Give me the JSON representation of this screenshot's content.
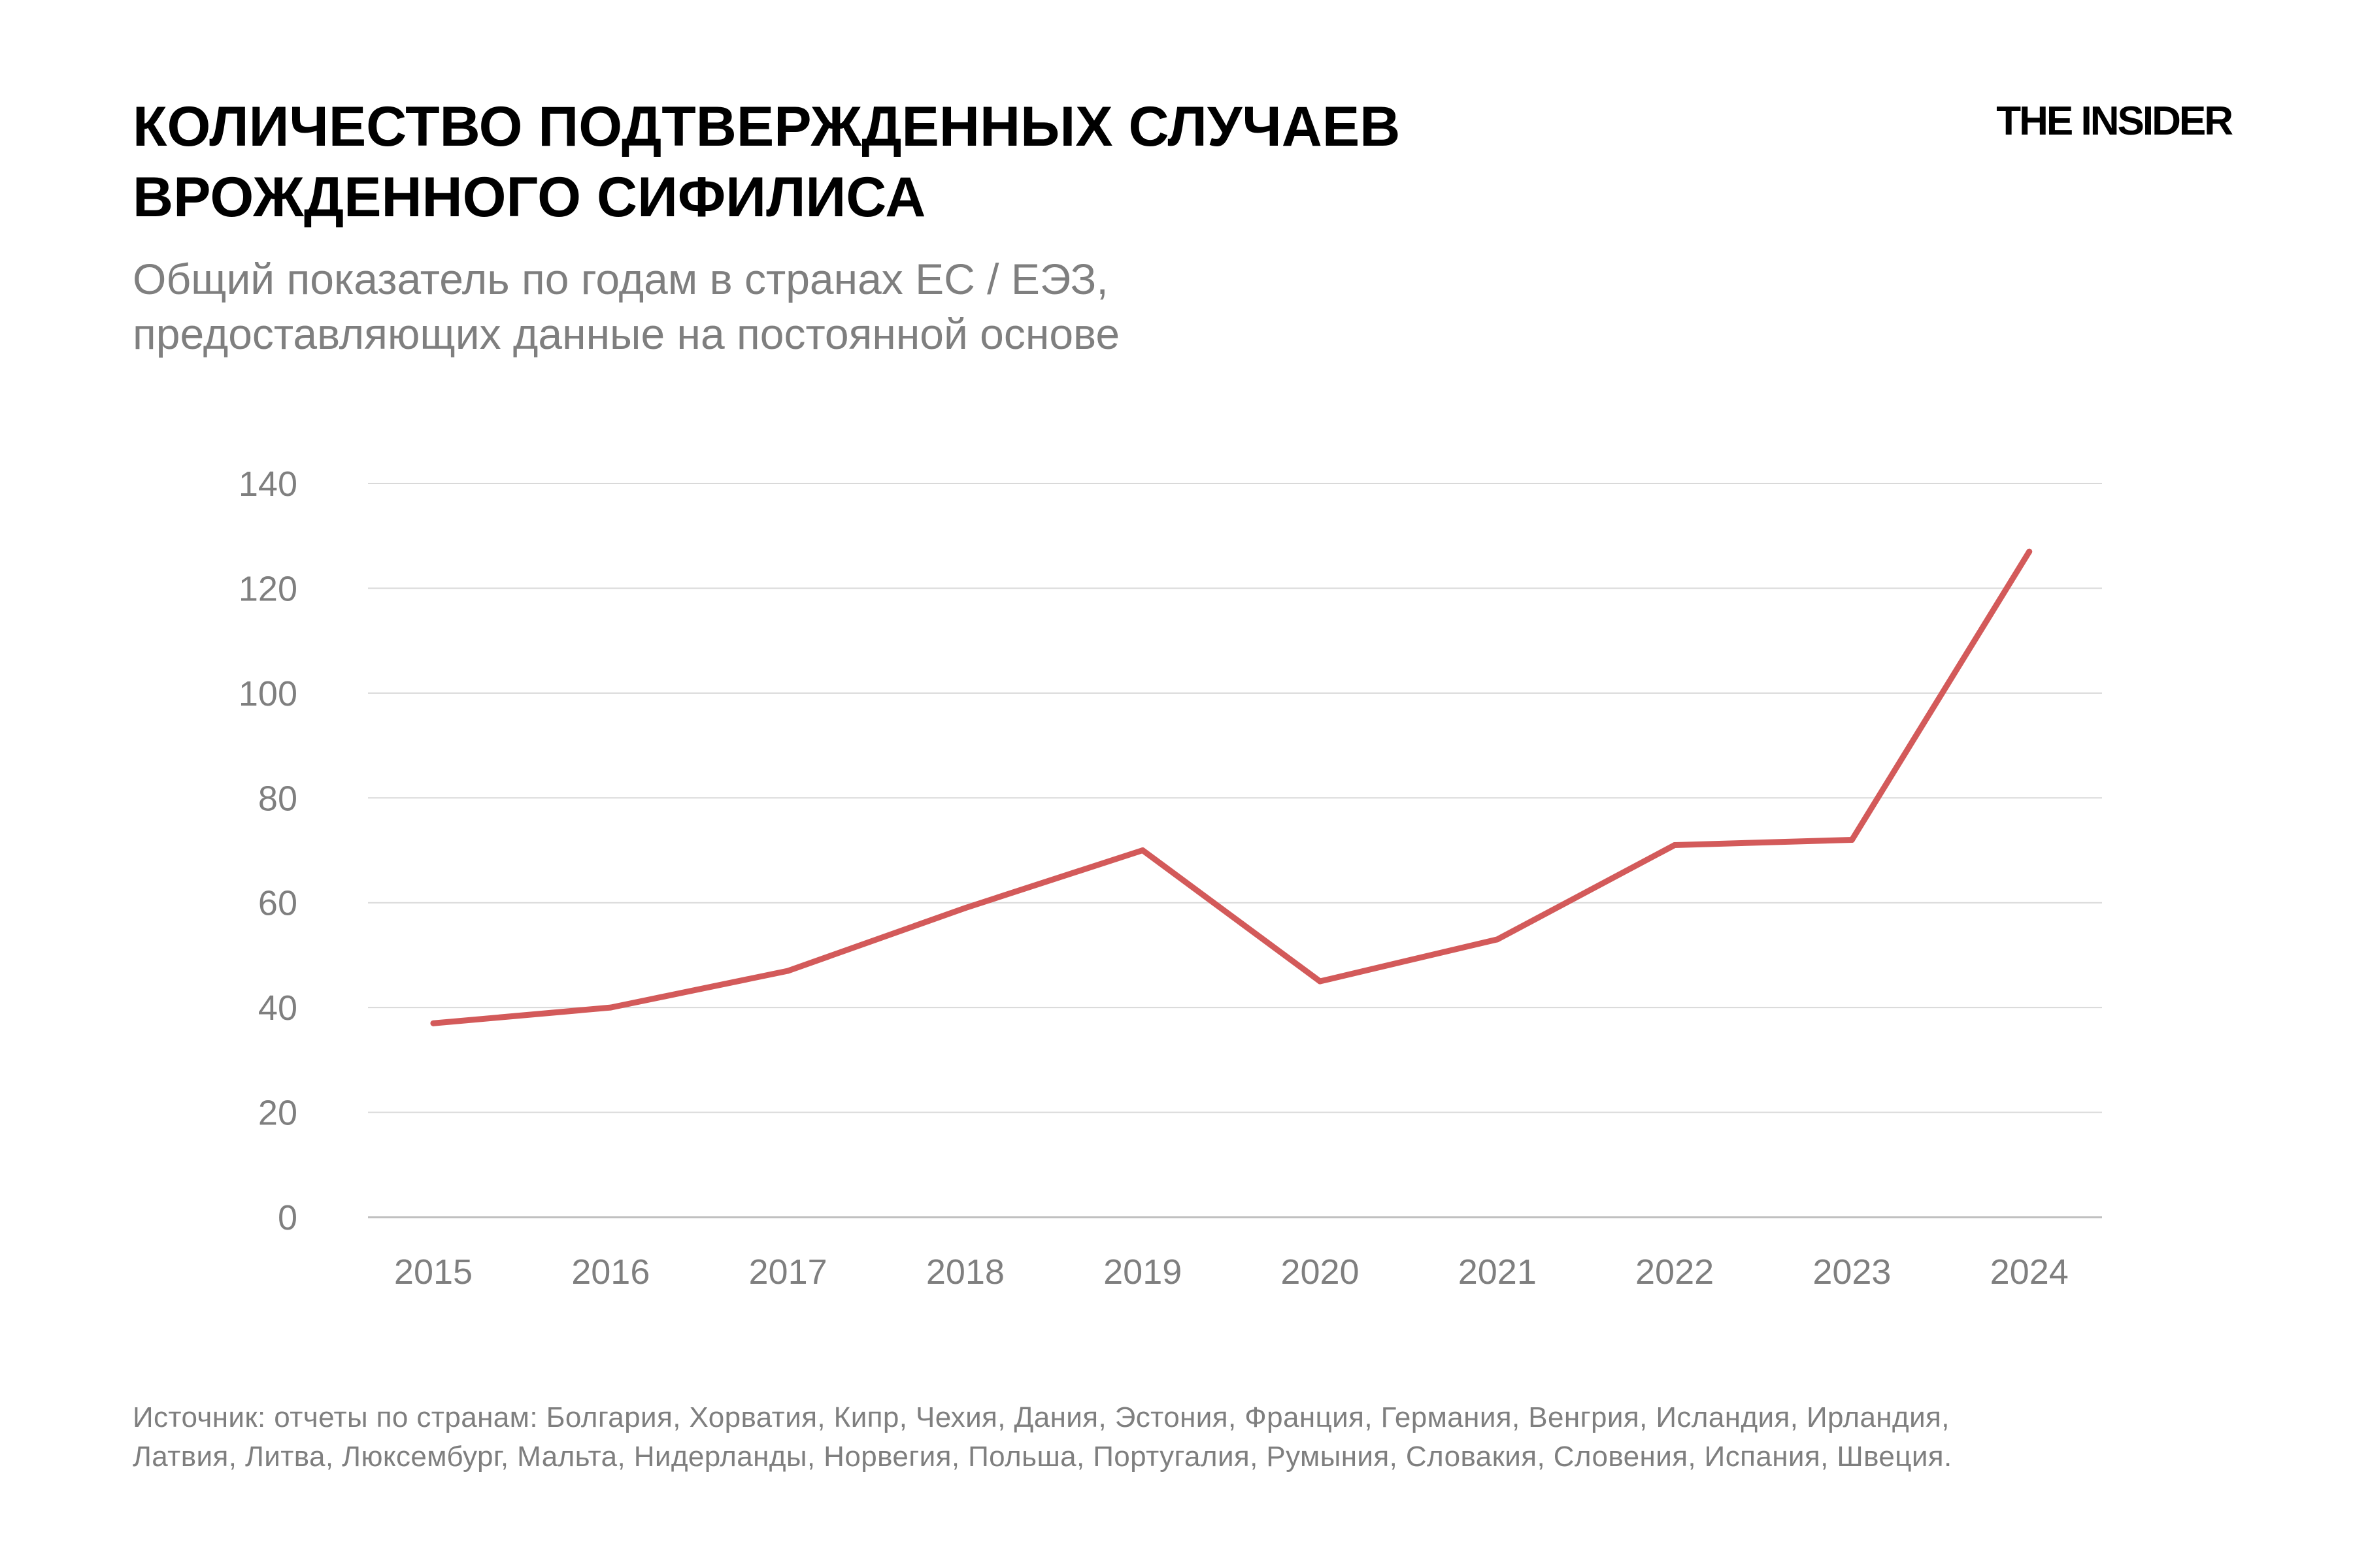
{
  "header": {
    "title_lines": [
      "КОЛИЧЕСТВО ПОДТВЕРЖДЕННЫХ СЛУЧАЕВ",
      "ВРОЖДЕННОГО СИФИЛИСА"
    ],
    "subtitle_lines": [
      "Общий показатель по годам в странах ЕС / ЕЭЗ,",
      "предоставляющих данные на постоянной основе"
    ],
    "logo": "THE INSIDER"
  },
  "footer": {
    "source_lines": [
      "Источник: отчеты по странам: Болгария, Хорватия, Кипр, Чехия, Дания, Эстония, Франция, Германия, Венгрия, Исландия, Ирландия,",
      "Латвия, Литва, Люксембург, Мальта, Нидерланды, Норвегия, Польша, Португалия, Румыния, Словакия, Словения, Испания, Швеция."
    ]
  },
  "chart_data": {
    "type": "line",
    "title": "",
    "xlabel": "",
    "ylabel": "",
    "categories": [
      "2015",
      "2016",
      "2017",
      "2018",
      "2019",
      "2020",
      "2021",
      "2022",
      "2023",
      "2024"
    ],
    "series": [
      {
        "values": [
          37,
          40,
          47,
          59,
          70,
          45,
          53,
          71,
          72,
          127
        ],
        "color": "#d35a5a"
      }
    ],
    "ylim": [
      0,
      140
    ],
    "yticks": [
      0,
      20,
      40,
      60,
      80,
      100,
      120,
      140
    ],
    "grid": true,
    "legend": "none",
    "colors": {
      "line": "#d35a5a",
      "grid": "#d9d9d9",
      "axis": "#bfbfbf",
      "tick_text": "#7f7f7f"
    }
  }
}
